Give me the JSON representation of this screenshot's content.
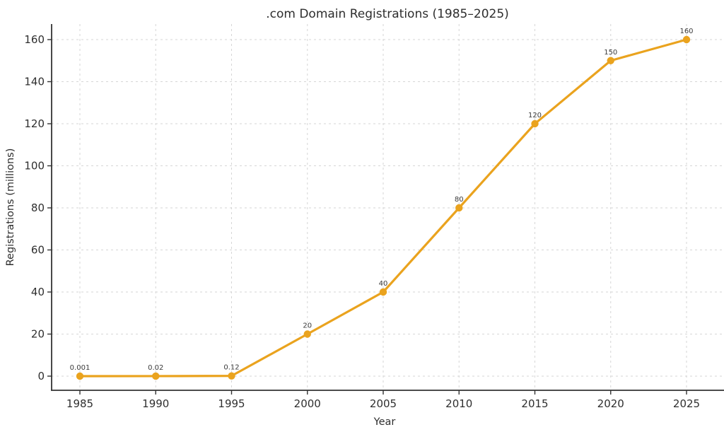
{
  "chart_data": {
    "type": "line",
    "title": ".com Domain Registrations (1985–2025)",
    "xlabel": "Year",
    "ylabel": "Registrations (millions)",
    "x": [
      1985,
      1990,
      1995,
      2000,
      2005,
      2010,
      2015,
      2020,
      2025
    ],
    "series": [
      {
        "values": [
          0.001,
          0.02,
          0.12,
          20,
          40,
          80,
          120,
          150,
          160
        ],
        "point_labels": [
          "0.001",
          "0.02",
          "0.12",
          "20",
          "40",
          "80",
          "120",
          "150",
          "160"
        ],
        "color": "#EAA31E",
        "marker": "circle"
      }
    ],
    "xticks": [
      "1985",
      "1990",
      "1995",
      "2000",
      "2005",
      "2010",
      "2015",
      "2020",
      "2025"
    ],
    "yticks": [
      "0",
      "20",
      "40",
      "60",
      "80",
      "100",
      "120",
      "140",
      "160"
    ],
    "ytick_values": [
      0,
      20,
      40,
      60,
      80,
      100,
      120,
      140,
      160
    ],
    "ylim": [
      0,
      160
    ],
    "grid": true,
    "grid_style": "dashed",
    "legend_position": "none"
  },
  "colors": {
    "line": "#EAA31E",
    "grid": "#D6D6D6",
    "spine": "#333333",
    "tick": "#333333",
    "title_text": "#2E2E2E",
    "tick_text": "#2F2F2F",
    "annotation_text": "#3A3A3A",
    "background": "#FFFFFF"
  }
}
